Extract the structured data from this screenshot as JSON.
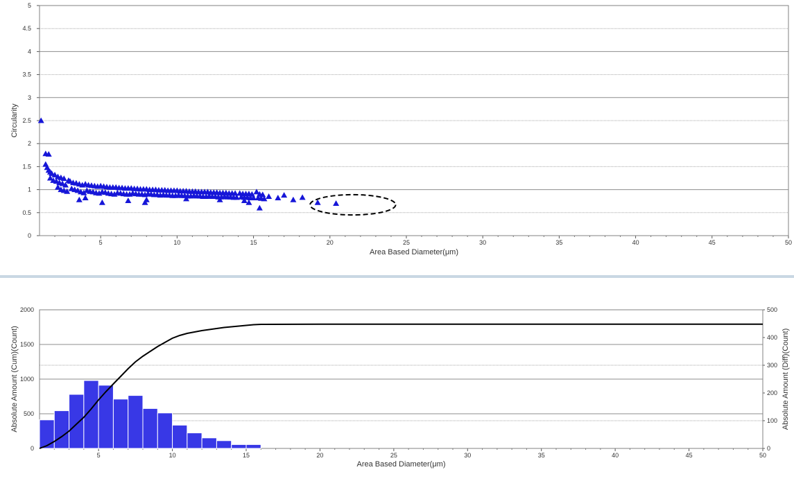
{
  "colors": {
    "marker": "#1616d8",
    "bar": "#3838e6",
    "bar_edge": "#ffffff",
    "cum_line": "#000000",
    "ellipse": "#000000",
    "divider": "#c9d7e3"
  },
  "chart_data": [
    {
      "type": "scatter",
      "xlabel": "Area Based Diameter(μm)",
      "ylabel": "Circularity",
      "xlim": [
        1,
        50
      ],
      "ylim": [
        0,
        5
      ],
      "x_ticks": [
        5,
        10,
        15,
        20,
        25,
        30,
        35,
        40,
        45,
        50
      ],
      "x_tick_labels": [
        "5",
        "10",
        "15",
        "20",
        "25",
        "30",
        "35",
        "40",
        "45",
        "50"
      ],
      "y_ticks": [
        0,
        0.5,
        1,
        1.5,
        2,
        2.5,
        3,
        3.5,
        4,
        4.5,
        5
      ],
      "y_tick_labels": [
        "0",
        "0.5",
        "1",
        "1.5",
        "2",
        "2.5",
        "3",
        "3.5",
        "4",
        "4.5",
        "5"
      ],
      "grid": true,
      "marker": "triangle",
      "points_x": [
        1.1,
        1.4,
        1.6,
        1.4,
        1.5,
        1.6,
        1.7,
        1.8,
        2.0,
        2.2,
        2.4,
        2.6,
        1.7,
        1.9,
        2.1,
        2.3,
        2.5,
        2.7,
        2.2,
        2.4,
        2.6,
        2.8,
        2.9,
        3.0,
        3.2,
        3.4,
        3.6,
        3.8,
        3.1,
        3.3,
        3.5,
        3.7,
        3.9,
        4.0,
        4.2,
        4.4,
        4.6,
        4.8,
        4.1,
        4.3,
        4.5,
        4.7,
        4.9,
        5.0,
        5.2,
        5.4,
        5.6,
        5.8,
        5.1,
        5.3,
        5.5,
        5.7,
        5.9,
        5.1,
        6.0,
        6.2,
        6.4,
        6.6,
        6.8,
        6.1,
        6.3,
        6.5,
        6.7,
        6.9,
        7.0,
        7.2,
        7.4,
        7.6,
        7.8,
        7.1,
        7.3,
        7.5,
        7.7,
        7.9,
        7.9,
        8.0,
        8.2,
        8.4,
        8.6,
        8.8,
        8.1,
        8.3,
        8.5,
        8.7,
        8.9,
        9.0,
        9.2,
        9.4,
        9.6,
        9.8,
        9.1,
        9.3,
        9.5,
        9.7,
        9.9,
        10.0,
        10.2,
        10.4,
        10.6,
        10.8,
        10.1,
        10.3,
        10.5,
        10.7,
        10.9,
        11.0,
        11.2,
        11.4,
        11.6,
        11.8,
        11.1,
        11.3,
        11.5,
        11.7,
        11.9,
        12.0,
        12.2,
        12.4,
        12.6,
        12.8,
        12.1,
        12.3,
        12.5,
        12.7,
        12.9,
        13.0,
        13.2,
        13.4,
        13.6,
        13.8,
        13.1,
        13.3,
        13.5,
        13.7,
        13.9,
        14.1,
        14.3,
        14.5,
        14.7,
        14.9,
        14.2,
        14.4,
        14.6,
        14.8,
        15.0,
        15.2,
        15.4,
        15.6,
        15.3,
        15.5,
        15.7,
        14.4,
        14.7,
        15.4,
        16.0,
        16.6,
        17.0,
        17.6,
        18.2,
        19.2,
        20.4,
        3.6,
        4.0,
        6.8,
        8.0,
        10.6,
        12.8
      ],
      "points_y": [
        2.5,
        1.78,
        1.77,
        1.55,
        1.48,
        1.42,
        1.38,
        1.35,
        1.32,
        1.28,
        1.26,
        1.24,
        1.25,
        1.2,
        1.18,
        1.15,
        1.13,
        1.1,
        1.05,
        1.0,
        0.98,
        0.96,
        1.2,
        1.18,
        1.15,
        1.14,
        1.12,
        1.1,
        1.02,
        1.0,
        0.98,
        0.95,
        0.93,
        1.12,
        1.1,
        1.09,
        1.08,
        1.07,
        0.98,
        0.96,
        0.95,
        0.93,
        0.92,
        1.08,
        1.07,
        1.06,
        1.05,
        1.05,
        0.95,
        0.94,
        0.92,
        0.91,
        0.9,
        0.72,
        1.05,
        1.04,
        1.04,
        1.03,
        1.03,
        0.93,
        0.92,
        0.91,
        0.9,
        0.9,
        1.03,
        1.02,
        1.02,
        1.01,
        1.01,
        0.92,
        0.91,
        0.9,
        0.9,
        0.89,
        0.72,
        1.01,
        1.0,
        1.0,
        1.0,
        0.99,
        0.91,
        0.9,
        0.89,
        0.89,
        0.88,
        0.99,
        0.99,
        0.98,
        0.98,
        0.98,
        0.89,
        0.88,
        0.88,
        0.87,
        0.87,
        0.98,
        0.97,
        0.97,
        0.97,
        0.96,
        0.88,
        0.87,
        0.87,
        0.86,
        0.86,
        0.96,
        0.96,
        0.95,
        0.95,
        0.95,
        0.87,
        0.86,
        0.86,
        0.85,
        0.85,
        0.95,
        0.94,
        0.94,
        0.94,
        0.93,
        0.86,
        0.85,
        0.85,
        0.84,
        0.84,
        0.93,
        0.93,
        0.92,
        0.92,
        0.92,
        0.85,
        0.84,
        0.84,
        0.83,
        0.83,
        0.92,
        0.91,
        0.91,
        0.91,
        0.9,
        0.84,
        0.83,
        0.83,
        0.82,
        0.82,
        0.95,
        0.9,
        0.89,
        0.82,
        0.81,
        0.8,
        0.76,
        0.72,
        0.6,
        0.85,
        0.82,
        0.88,
        0.78,
        0.83,
        0.72,
        0.7,
        0.78,
        0.82,
        0.76,
        0.78,
        0.8,
        0.78
      ],
      "annotations": [
        {
          "shape": "dashed-ellipse",
          "center": [
            21.5,
            0.67
          ],
          "rx": 2.8,
          "ry": 0.22
        }
      ]
    },
    {
      "type": "bar",
      "xlabel": "Area Based Diameter(μm)",
      "ylabel": "Absolute Amount (Cum)(Count)",
      "y2label": "Absolute Amount (Diff)(Count)",
      "xlim": [
        1,
        50
      ],
      "ylim": [
        0,
        2000
      ],
      "y2lim": [
        0,
        500
      ],
      "x_ticks": [
        5,
        10,
        15,
        20,
        25,
        30,
        35,
        40,
        45,
        50
      ],
      "x_tick_labels": [
        "5",
        "10",
        "15",
        "20",
        "25",
        "30",
        "35",
        "40",
        "45",
        "50"
      ],
      "y_ticks": [
        0,
        500,
        1000,
        1500,
        2000
      ],
      "y_tick_labels": [
        "0",
        "500",
        "1000",
        "1500",
        "2000"
      ],
      "y2_ticks": [
        0,
        100,
        200,
        300,
        400,
        500
      ],
      "y2_tick_labels": [
        "0",
        "100",
        "200",
        "300",
        "400",
        "500"
      ],
      "grid": true,
      "bin_width": 1,
      "bin_starts": [
        1,
        2,
        3,
        4,
        5,
        6,
        7,
        8,
        9,
        10,
        11,
        12,
        13,
        14,
        15
      ],
      "series": [
        {
          "kind": "bar",
          "axis": "right",
          "values": [
            103,
            136,
            195,
            245,
            228,
            178,
            191,
            144,
            128,
            84,
            56,
            38,
            28,
            14,
            14
          ]
        },
        {
          "kind": "line",
          "axis": "left",
          "x": [
            1,
            1.5,
            2,
            2.5,
            3,
            3.5,
            4,
            4.5,
            5,
            5.5,
            6,
            6.5,
            7,
            7.5,
            8,
            8.5,
            9,
            9.5,
            10,
            10.5,
            11,
            11.5,
            12,
            12.5,
            13,
            13.5,
            14,
            14.5,
            15,
            15.5,
            16,
            20,
            25,
            30,
            35,
            40,
            45,
            50
          ],
          "values": [
            0,
            40,
            100,
            170,
            250,
            350,
            450,
            570,
            700,
            820,
            930,
            1040,
            1150,
            1250,
            1330,
            1400,
            1470,
            1530,
            1590,
            1630,
            1660,
            1680,
            1700,
            1715,
            1730,
            1745,
            1755,
            1765,
            1775,
            1785,
            1790,
            1792,
            1792,
            1792,
            1792,
            1792,
            1792,
            1792
          ]
        }
      ]
    }
  ]
}
